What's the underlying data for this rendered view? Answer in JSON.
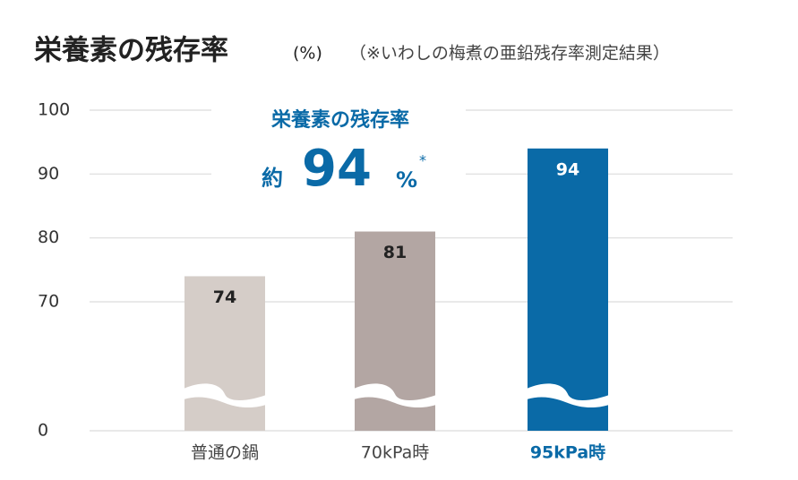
{
  "chart_data": {
    "type": "bar",
    "title": "栄養素の残存率",
    "title_unit": "(%)",
    "subtitle": "（※いわしの梅煮の亜鉛残存率測定結果）",
    "categories": [
      "普通の鍋",
      "70kPa時",
      "95kPa時"
    ],
    "values": [
      74,
      81,
      94
    ],
    "colors": [
      "#d5cdc8",
      "#b3a6a3",
      "#0a6aa7"
    ],
    "highlight_category": 2,
    "ylim": [
      0,
      100
    ],
    "yticks": [
      0,
      70,
      80,
      90,
      100
    ],
    "broken_axis": true,
    "grid": true,
    "annotation": {
      "title": "栄養素の残存率",
      "prefix": "約",
      "value": 94,
      "unit": "%",
      "mark": "*"
    }
  }
}
